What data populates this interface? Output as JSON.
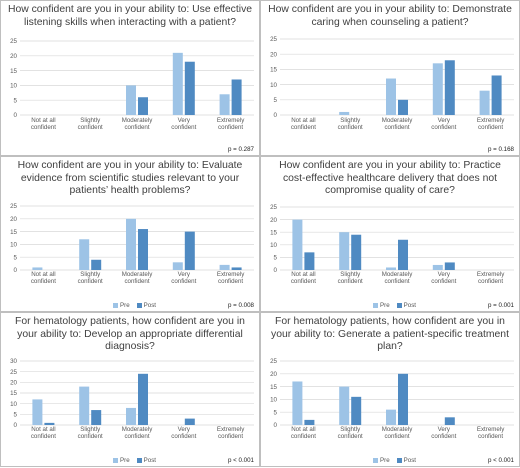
{
  "colors": {
    "pre": "#9dc3e6",
    "post": "#4f8ac2",
    "grid": "#d9d9d9",
    "text": "#595959"
  },
  "chart_data": [
    {
      "type": "bar",
      "title": "How confident are you in your ability to: Use effective listening skills when interacting with a patient?",
      "categories": [
        "Not at all confident",
        "Slightly confident",
        "Moderately confident",
        "Very confident",
        "Extremely confident"
      ],
      "series": [
        {
          "name": "Pre",
          "values": [
            0,
            0,
            10,
            21,
            7
          ]
        },
        {
          "name": "Post",
          "values": [
            0,
            0,
            6,
            18,
            12
          ]
        }
      ],
      "ylim": [
        0,
        25
      ],
      "yticks": [
        0,
        5,
        10,
        15,
        20,
        25
      ],
      "p_value": "p = 0.287",
      "legend": "none",
      "grid": true
    },
    {
      "type": "bar",
      "title": "How confident are you in your ability to: Demonstrate caring when counseling a patient?",
      "categories": [
        "Not at all confident",
        "Slightly confident",
        "Moderately confident",
        "Very confident",
        "Extremely confident"
      ],
      "series": [
        {
          "name": "Pre",
          "values": [
            0,
            1,
            12,
            17,
            8
          ]
        },
        {
          "name": "Post",
          "values": [
            0,
            0,
            5,
            18,
            13
          ]
        }
      ],
      "ylim": [
        0,
        25
      ],
      "yticks": [
        0,
        5,
        10,
        15,
        20,
        25
      ],
      "p_value": "p = 0.168",
      "legend": "none",
      "grid": true
    },
    {
      "type": "bar",
      "title": "How confident are you in your ability to: Evaluate evidence from scientific studies relevant to your patients’ health problems?",
      "categories": [
        "Not at all confident",
        "Slightly confident",
        "Moderately confident",
        "Very confident",
        "Extremely confident"
      ],
      "series": [
        {
          "name": "Pre",
          "values": [
            1,
            12,
            20,
            3,
            2
          ]
        },
        {
          "name": "Post",
          "values": [
            0,
            4,
            16,
            15,
            1
          ]
        }
      ],
      "ylim": [
        0,
        25
      ],
      "yticks": [
        0,
        5,
        10,
        15,
        20,
        25
      ],
      "p_value": "p = 0.008",
      "legend": "bottom",
      "grid": true
    },
    {
      "type": "bar",
      "title": "How confident are you in your ability to: Practice cost-effective healthcare delivery that does not compromise quality of care?",
      "categories": [
        "Not at all confident",
        "Slightly confident",
        "Moderately confident",
        "Very confident",
        "Extremely confident"
      ],
      "series": [
        {
          "name": "Pre",
          "values": [
            20,
            15,
            1,
            2,
            0
          ]
        },
        {
          "name": "Post",
          "values": [
            7,
            14,
            12,
            3,
            0
          ]
        }
      ],
      "ylim": [
        0,
        25
      ],
      "yticks": [
        0,
        5,
        10,
        15,
        20,
        25
      ],
      "p_value": "p = 0.001",
      "legend": "bottom",
      "grid": true
    },
    {
      "type": "bar",
      "title": "For hematology patients, how confident are you in your ability to: Develop an appropriate differential diagnosis?",
      "categories": [
        "Not at all confident",
        "Slightly confident",
        "Moderately confident",
        "Very confident",
        "Extremely confident"
      ],
      "series": [
        {
          "name": "Pre",
          "values": [
            12,
            18,
            8,
            0,
            0
          ]
        },
        {
          "name": "Post",
          "values": [
            1,
            7,
            24,
            3,
            0
          ]
        }
      ],
      "ylim": [
        0,
        30
      ],
      "yticks": [
        0,
        5,
        10,
        15,
        20,
        25,
        30
      ],
      "p_value": "p < 0.001",
      "legend": "bottom",
      "grid": true
    },
    {
      "type": "bar",
      "title": "For hematology patients, how confident are you in your ability to: Generate a patient-specific treatment plan?",
      "categories": [
        "Not at all confident",
        "Slightly confident",
        "Moderately confident",
        "Very confident",
        "Extremely confident"
      ],
      "series": [
        {
          "name": "Pre",
          "values": [
            17,
            15,
            6,
            0,
            0
          ]
        },
        {
          "name": "Post",
          "values": [
            2,
            11,
            20,
            3,
            0
          ]
        }
      ],
      "ylim": [
        0,
        25
      ],
      "yticks": [
        0,
        5,
        10,
        15,
        20,
        25
      ],
      "p_value": "p < 0.001",
      "legend": "bottom",
      "grid": true
    }
  ]
}
